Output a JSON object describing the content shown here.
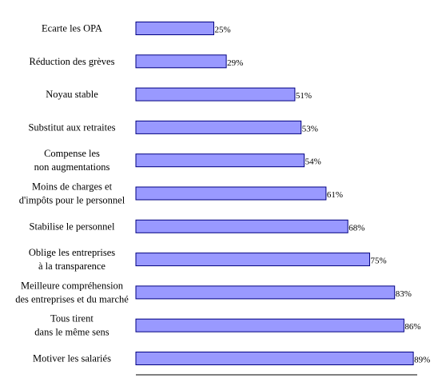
{
  "chart_data": {
    "type": "bar",
    "orientation": "horizontal",
    "categories": [
      [
        "Ecarte les OPA"
      ],
      [
        "Réduction des grèves"
      ],
      [
        "Noyau stable"
      ],
      [
        "Substitut aux retraites"
      ],
      [
        "Compense les",
        "non augmentations"
      ],
      [
        "Moins de charges et",
        "d'impôts pour le personnel"
      ],
      [
        "Stabilise le personnel"
      ],
      [
        "Oblige les entreprises",
        "à la transparence"
      ],
      [
        "Meilleure compréhension",
        "des entreprises et du marché"
      ],
      [
        "Tous tirent",
        "dans le même sens"
      ],
      [
        "Motiver les salariés"
      ]
    ],
    "values": [
      25,
      29,
      51,
      53,
      54,
      61,
      68,
      75,
      83,
      86,
      89
    ],
    "value_labels": [
      "25%",
      "29%",
      "51%",
      "53%",
      "54%",
      "61%",
      "68%",
      "75%",
      "83%",
      "86%",
      "89%"
    ],
    "xlim": [
      0,
      90
    ],
    "grid": false,
    "legend": "none",
    "bar_color": "#9999ff",
    "bar_border_color": "#000080"
  }
}
